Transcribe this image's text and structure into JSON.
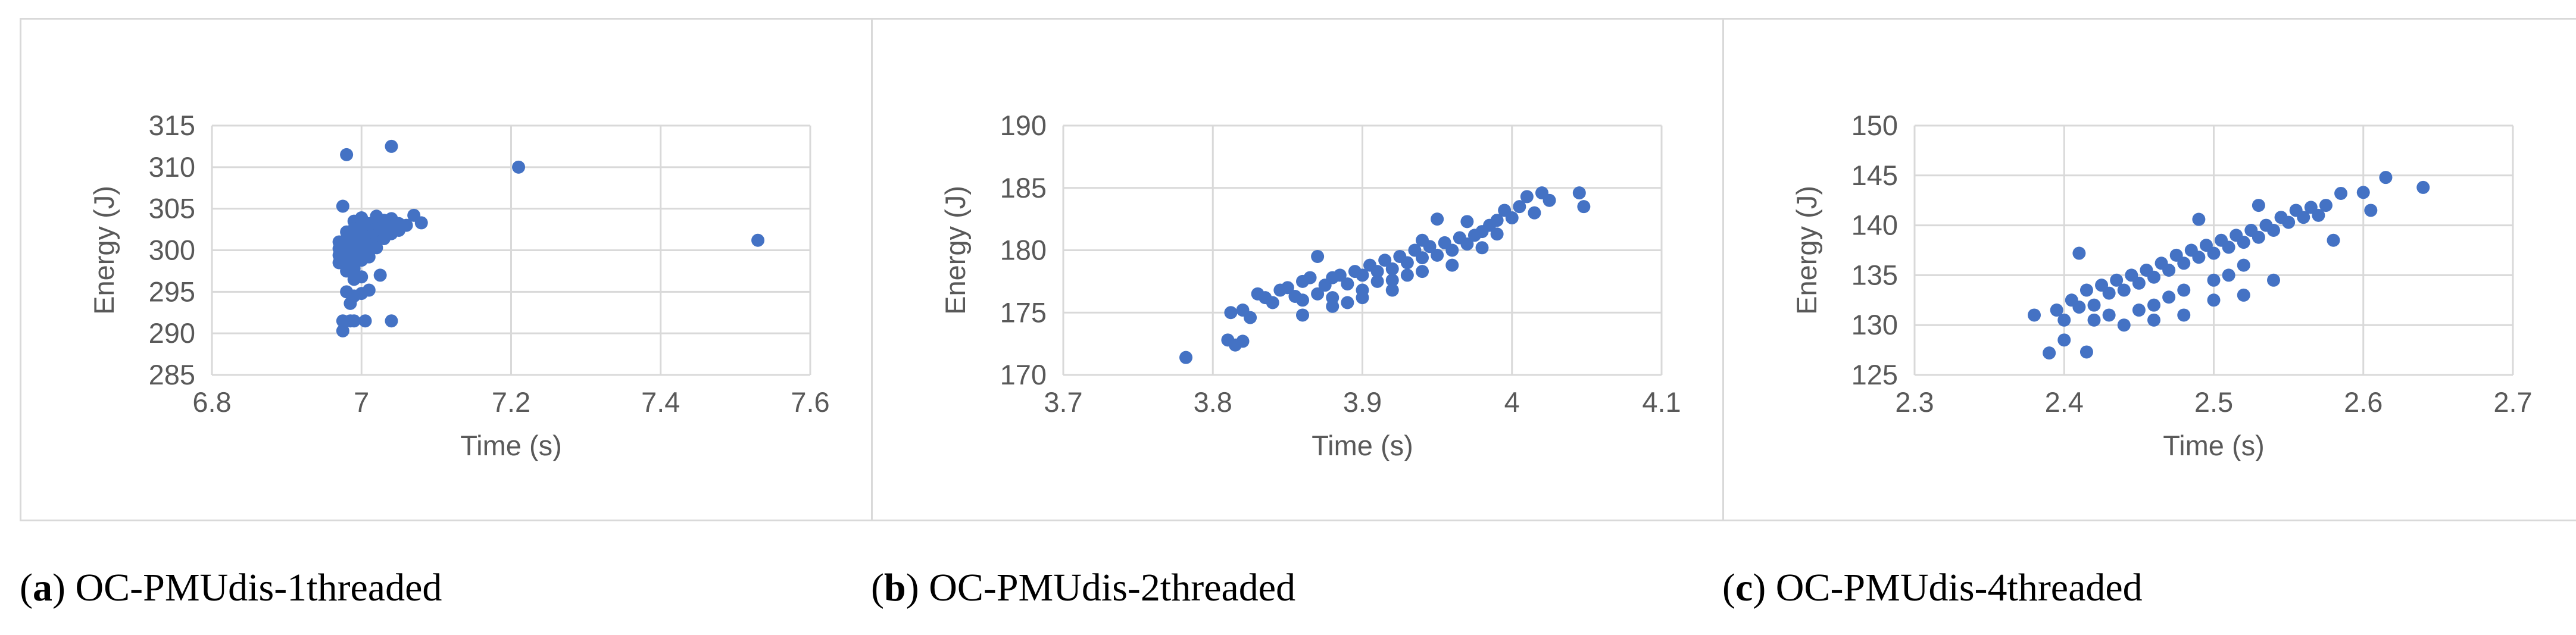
{
  "chart_data": [
    {
      "type": "scatter",
      "caption_letter": "a",
      "caption_text": "OC-PMUdis-1threaded",
      "xlabel": "Time (s)",
      "ylabel": "Energy (J)",
      "xlim": [
        6.8,
        7.6
      ],
      "ylim": [
        285,
        315
      ],
      "x_ticks": [
        "6.8",
        "7",
        "7.2",
        "7.4",
        "7.6"
      ],
      "y_ticks": [
        "285",
        "290",
        "295",
        "300",
        "305",
        "310",
        "315"
      ],
      "grid": true,
      "marker_color": "#4472C4",
      "points": [
        [
          6.98,
          311.5
        ],
        [
          7.04,
          312.5
        ],
        [
          7.21,
          310.0
        ],
        [
          7.53,
          301.2
        ],
        [
          6.975,
          305.3
        ],
        [
          7.07,
          304.2
        ],
        [
          7.08,
          303.3
        ],
        [
          7.04,
          303.8
        ],
        [
          7.02,
          304.1
        ],
        [
          7.0,
          303.9
        ],
        [
          6.99,
          303.5
        ],
        [
          7.03,
          302.8
        ],
        [
          6.97,
          301.0
        ],
        [
          6.97,
          300.2
        ],
        [
          6.97,
          299.4
        ],
        [
          6.97,
          298.5
        ],
        [
          6.98,
          302.2
        ],
        [
          6.98,
          301.4
        ],
        [
          6.98,
          300.6
        ],
        [
          6.98,
          299.8
        ],
        [
          6.98,
          299.0
        ],
        [
          6.98,
          298.2
        ],
        [
          6.98,
          297.5
        ],
        [
          6.99,
          302.6
        ],
        [
          6.99,
          301.8
        ],
        [
          6.99,
          301.0
        ],
        [
          6.99,
          300.2
        ],
        [
          6.99,
          299.4
        ],
        [
          6.99,
          298.6
        ],
        [
          6.99,
          297.8
        ],
        [
          7.0,
          302.9
        ],
        [
          7.0,
          302.0
        ],
        [
          7.0,
          301.2
        ],
        [
          7.0,
          300.4
        ],
        [
          7.0,
          299.6
        ],
        [
          7.0,
          298.8
        ],
        [
          7.01,
          303.2
        ],
        [
          7.01,
          302.4
        ],
        [
          7.01,
          301.6
        ],
        [
          7.01,
          300.8
        ],
        [
          7.01,
          300.0
        ],
        [
          7.01,
          299.2
        ],
        [
          7.02,
          303.4
        ],
        [
          7.02,
          302.6
        ],
        [
          7.02,
          301.8
        ],
        [
          7.02,
          301.0
        ],
        [
          7.02,
          300.3
        ],
        [
          7.03,
          303.6
        ],
        [
          7.03,
          302.2
        ],
        [
          7.03,
          301.4
        ],
        [
          7.04,
          302.8
        ],
        [
          7.04,
          302.0
        ],
        [
          7.05,
          303.2
        ],
        [
          7.05,
          302.4
        ],
        [
          7.06,
          303.0
        ],
        [
          7.025,
          297.0
        ],
        [
          6.99,
          296.5
        ],
        [
          7.0,
          296.8
        ],
        [
          6.98,
          295.0
        ],
        [
          6.99,
          294.5
        ],
        [
          7.0,
          294.8
        ],
        [
          7.01,
          295.2
        ],
        [
          6.985,
          293.6
        ],
        [
          6.975,
          291.5
        ],
        [
          6.985,
          291.5
        ],
        [
          6.99,
          291.5
        ],
        [
          7.005,
          291.5
        ],
        [
          7.04,
          291.5
        ],
        [
          6.975,
          290.3
        ]
      ]
    },
    {
      "type": "scatter",
      "caption_letter": "b",
      "caption_text": "OC-PMUdis-2threaded",
      "xlabel": "Time (s)",
      "ylabel": "Energy (J)",
      "xlim": [
        3.7,
        4.1
      ],
      "ylim": [
        170,
        190
      ],
      "x_ticks": [
        "3.7",
        "3.8",
        "3.9",
        "4",
        "4.1"
      ],
      "y_ticks": [
        "170",
        "175",
        "180",
        "185",
        "190"
      ],
      "grid": true,
      "marker_color": "#4472C4",
      "points": [
        [
          3.782,
          171.4
        ],
        [
          3.81,
          172.8
        ],
        [
          3.815,
          172.4
        ],
        [
          3.82,
          172.7
        ],
        [
          3.812,
          175.0
        ],
        [
          3.82,
          175.2
        ],
        [
          3.825,
          174.6
        ],
        [
          3.83,
          176.5
        ],
        [
          3.835,
          176.2
        ],
        [
          3.84,
          175.8
        ],
        [
          3.845,
          176.8
        ],
        [
          3.85,
          177.0
        ],
        [
          3.855,
          176.3
        ],
        [
          3.86,
          177.5
        ],
        [
          3.86,
          176.0
        ],
        [
          3.865,
          177.8
        ],
        [
          3.87,
          176.5
        ],
        [
          3.87,
          179.5
        ],
        [
          3.875,
          177.2
        ],
        [
          3.88,
          177.8
        ],
        [
          3.88,
          176.2
        ],
        [
          3.885,
          178.0
        ],
        [
          3.89,
          177.3
        ],
        [
          3.89,
          175.8
        ],
        [
          3.895,
          178.3
        ],
        [
          3.9,
          178.0
        ],
        [
          3.9,
          176.8
        ],
        [
          3.905,
          178.8
        ],
        [
          3.91,
          178.3
        ],
        [
          3.91,
          177.5
        ],
        [
          3.915,
          179.2
        ],
        [
          3.92,
          178.5
        ],
        [
          3.92,
          177.6
        ],
        [
          3.925,
          179.5
        ],
        [
          3.93,
          179.0
        ],
        [
          3.93,
          178.0
        ],
        [
          3.935,
          180.0
        ],
        [
          3.94,
          179.4
        ],
        [
          3.94,
          178.3
        ],
        [
          3.945,
          180.3
        ],
        [
          3.95,
          179.6
        ],
        [
          3.95,
          182.5
        ],
        [
          3.955,
          180.6
        ],
        [
          3.96,
          180.0
        ],
        [
          3.96,
          178.8
        ],
        [
          3.965,
          181.0
        ],
        [
          3.97,
          180.5
        ],
        [
          3.97,
          182.3
        ],
        [
          3.975,
          181.2
        ],
        [
          3.98,
          181.5
        ],
        [
          3.98,
          180.2
        ],
        [
          3.985,
          182.0
        ],
        [
          3.99,
          182.4
        ],
        [
          3.99,
          181.3
        ],
        [
          3.995,
          183.2
        ],
        [
          4.0,
          182.6
        ],
        [
          4.005,
          183.5
        ],
        [
          4.01,
          184.3
        ],
        [
          4.015,
          183.0
        ],
        [
          4.02,
          184.6
        ],
        [
          4.025,
          184.0
        ],
        [
          4.045,
          184.6
        ],
        [
          4.048,
          183.5
        ],
        [
          3.86,
          174.8
        ],
        [
          3.88,
          175.5
        ],
        [
          3.9,
          176.2
        ],
        [
          3.92,
          176.8
        ],
        [
          3.94,
          180.8
        ]
      ]
    },
    {
      "type": "scatter",
      "caption_letter": "c",
      "caption_text": "OC-PMUdis-4threaded",
      "xlabel": "Time (s)",
      "ylabel": "Energy (J)",
      "xlim": [
        2.3,
        2.7
      ],
      "ylim": [
        125,
        150
      ],
      "x_ticks": [
        "2.3",
        "2.4",
        "2.5",
        "2.6",
        "2.7"
      ],
      "y_ticks": [
        "125",
        "130",
        "135",
        "140",
        "145",
        "150"
      ],
      "grid": true,
      "marker_color": "#4472C4",
      "points": [
        [
          2.38,
          131.0
        ],
        [
          2.39,
          127.2
        ],
        [
          2.395,
          131.5
        ],
        [
          2.4,
          130.5
        ],
        [
          2.4,
          128.5
        ],
        [
          2.405,
          132.5
        ],
        [
          2.41,
          131.8
        ],
        [
          2.41,
          137.2
        ],
        [
          2.415,
          133.5
        ],
        [
          2.415,
          127.3
        ],
        [
          2.42,
          132.0
        ],
        [
          2.42,
          130.5
        ],
        [
          2.425,
          134.0
        ],
        [
          2.43,
          133.2
        ],
        [
          2.43,
          131.0
        ],
        [
          2.435,
          134.5
        ],
        [
          2.44,
          133.5
        ],
        [
          2.44,
          130.0
        ],
        [
          2.445,
          135.0
        ],
        [
          2.45,
          134.2
        ],
        [
          2.45,
          131.5
        ],
        [
          2.455,
          135.5
        ],
        [
          2.46,
          134.8
        ],
        [
          2.46,
          132.0
        ],
        [
          2.465,
          136.2
        ],
        [
          2.47,
          135.5
        ],
        [
          2.47,
          132.8
        ],
        [
          2.475,
          137.0
        ],
        [
          2.48,
          136.2
        ],
        [
          2.48,
          133.5
        ],
        [
          2.485,
          137.5
        ],
        [
          2.49,
          136.8
        ],
        [
          2.49,
          140.6
        ],
        [
          2.495,
          138.0
        ],
        [
          2.5,
          137.2
        ],
        [
          2.5,
          134.5
        ],
        [
          2.505,
          138.5
        ],
        [
          2.51,
          137.8
        ],
        [
          2.51,
          135.0
        ],
        [
          2.515,
          139.0
        ],
        [
          2.52,
          138.3
        ],
        [
          2.52,
          136.0
        ],
        [
          2.525,
          139.5
        ],
        [
          2.53,
          138.8
        ],
        [
          2.53,
          142.0
        ],
        [
          2.535,
          140.0
        ],
        [
          2.54,
          139.5
        ],
        [
          2.545,
          140.8
        ],
        [
          2.55,
          140.3
        ],
        [
          2.555,
          141.5
        ],
        [
          2.56,
          140.8
        ],
        [
          2.565,
          141.8
        ],
        [
          2.57,
          141.0
        ],
        [
          2.575,
          142.0
        ],
        [
          2.58,
          138.5
        ],
        [
          2.585,
          143.2
        ],
        [
          2.6,
          143.3
        ],
        [
          2.605,
          141.5
        ],
        [
          2.615,
          144.8
        ],
        [
          2.64,
          143.8
        ],
        [
          2.46,
          130.5
        ],
        [
          2.48,
          131.0
        ],
        [
          2.5,
          132.5
        ],
        [
          2.52,
          133.0
        ],
        [
          2.54,
          134.5
        ]
      ]
    }
  ]
}
